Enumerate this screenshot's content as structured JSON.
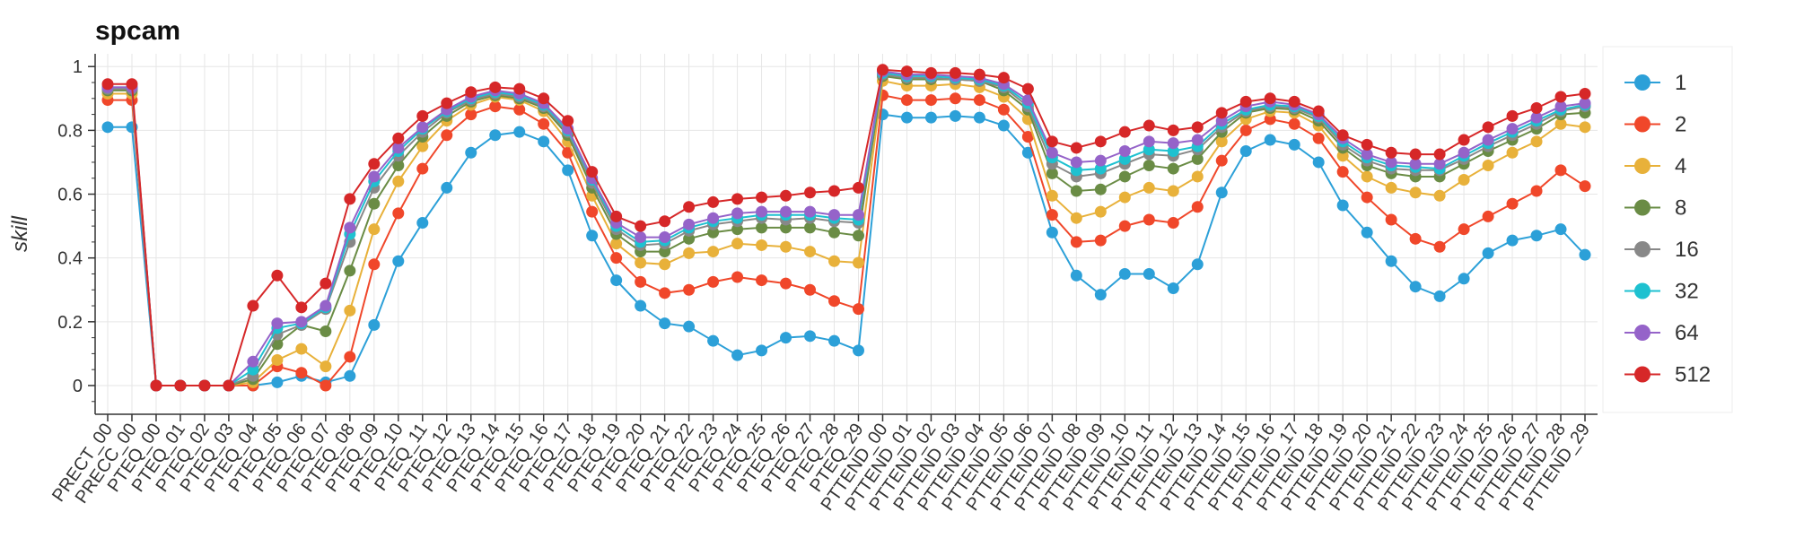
{
  "chart_data": {
    "type": "line",
    "title": "spcam",
    "xlabel": "",
    "ylabel": "skill",
    "ylim": [
      -0.09,
      1.04
    ],
    "yticks": [
      "0",
      "0.2",
      "0.4",
      "0.6",
      "0.8",
      "1"
    ],
    "grid": true,
    "legend_position": "right",
    "categories": [
      "PRECT_00",
      "PRECC_00",
      "PTEQ_00",
      "PTEQ_01",
      "PTEQ_02",
      "PTEQ_03",
      "PTEQ_04",
      "PTEQ_05",
      "PTEQ_06",
      "PTEQ_07",
      "PTEQ_08",
      "PTEQ_09",
      "PTEQ_10",
      "PTEQ_11",
      "PTEQ_12",
      "PTEQ_13",
      "PTEQ_14",
      "PTEQ_15",
      "PTEQ_16",
      "PTEQ_17",
      "PTEQ_18",
      "PTEQ_19",
      "PTEQ_20",
      "PTEQ_21",
      "PTEQ_22",
      "PTEQ_23",
      "PTEQ_24",
      "PTEQ_25",
      "PTEQ_26",
      "PTEQ_27",
      "PTEQ_28",
      "PTEQ_29",
      "PTTEND_00",
      "PTTEND_01",
      "PTTEND_02",
      "PTTEND_03",
      "PTTEND_04",
      "PTTEND_05",
      "PTTEND_06",
      "PTTEND_07",
      "PTTEND_08",
      "PTTEND_09",
      "PTTEND_10",
      "PTTEND_11",
      "PTTEND_12",
      "PTTEND_13",
      "PTTEND_14",
      "PTTEND_15",
      "PTTEND_16",
      "PTTEND_17",
      "PTTEND_18",
      "PTTEND_19",
      "PTTEND_20",
      "PTTEND_21",
      "PTTEND_22",
      "PTTEND_23",
      "PTTEND_24",
      "PTTEND_25",
      "PTTEND_26",
      "PTTEND_27",
      "PTTEND_28",
      "PTTEND_29"
    ],
    "series": [
      {
        "name": "1",
        "color": "#2ca0d8",
        "values": [
          0.81,
          0.81,
          0,
          0,
          0,
          0,
          0,
          0.01,
          0.03,
          0.01,
          0.03,
          0.19,
          0.39,
          0.51,
          0.62,
          0.73,
          0.785,
          0.795,
          0.765,
          0.675,
          0.47,
          0.33,
          0.25,
          0.195,
          0.185,
          0.14,
          0.095,
          0.11,
          0.15,
          0.155,
          0.14,
          0.11,
          0.85,
          0.84,
          0.84,
          0.845,
          0.84,
          0.815,
          0.73,
          0.48,
          0.345,
          0.285,
          0.35,
          0.35,
          0.305,
          0.38,
          0.605,
          0.735,
          0.77,
          0.755,
          0.7,
          0.565,
          0.48,
          0.39,
          0.31,
          0.28,
          0.335,
          0.415,
          0.455,
          0.47,
          0.49,
          0.41
        ]
      },
      {
        "name": "2",
        "color": "#f0472a",
        "values": [
          0.895,
          0.895,
          0,
          0,
          0,
          0,
          0,
          0.06,
          0.04,
          0,
          0.09,
          0.38,
          0.54,
          0.68,
          0.785,
          0.85,
          0.875,
          0.865,
          0.82,
          0.73,
          0.545,
          0.4,
          0.325,
          0.29,
          0.3,
          0.325,
          0.34,
          0.33,
          0.32,
          0.3,
          0.265,
          0.24,
          0.91,
          0.895,
          0.895,
          0.9,
          0.895,
          0.865,
          0.78,
          0.535,
          0.45,
          0.455,
          0.5,
          0.52,
          0.51,
          0.56,
          0.705,
          0.8,
          0.835,
          0.82,
          0.775,
          0.67,
          0.59,
          0.52,
          0.46,
          0.435,
          0.49,
          0.53,
          0.57,
          0.61,
          0.675,
          0.625
        ]
      },
      {
        "name": "4",
        "color": "#e8b13a",
        "values": [
          0.915,
          0.915,
          0,
          0,
          0,
          0,
          0.01,
          0.08,
          0.115,
          0.06,
          0.235,
          0.49,
          0.64,
          0.75,
          0.83,
          0.88,
          0.905,
          0.895,
          0.86,
          0.765,
          0.595,
          0.445,
          0.385,
          0.38,
          0.415,
          0.42,
          0.445,
          0.44,
          0.435,
          0.42,
          0.39,
          0.385,
          0.955,
          0.94,
          0.94,
          0.945,
          0.935,
          0.905,
          0.835,
          0.595,
          0.525,
          0.545,
          0.59,
          0.62,
          0.61,
          0.655,
          0.765,
          0.835,
          0.86,
          0.855,
          0.815,
          0.72,
          0.655,
          0.62,
          0.605,
          0.595,
          0.645,
          0.69,
          0.73,
          0.765,
          0.82,
          0.81
        ]
      },
      {
        "name": "8",
        "color": "#6a8c45",
        "values": [
          0.925,
          0.925,
          0,
          0,
          0,
          0,
          0.02,
          0.13,
          0.19,
          0.17,
          0.36,
          0.57,
          0.69,
          0.78,
          0.845,
          0.89,
          0.91,
          0.9,
          0.87,
          0.785,
          0.62,
          0.475,
          0.42,
          0.42,
          0.46,
          0.48,
          0.49,
          0.495,
          0.495,
          0.495,
          0.48,
          0.47,
          0.97,
          0.96,
          0.96,
          0.96,
          0.955,
          0.925,
          0.865,
          0.665,
          0.61,
          0.615,
          0.655,
          0.69,
          0.68,
          0.71,
          0.795,
          0.855,
          0.87,
          0.865,
          0.83,
          0.745,
          0.69,
          0.665,
          0.655,
          0.655,
          0.695,
          0.735,
          0.77,
          0.805,
          0.85,
          0.855
        ]
      },
      {
        "name": "16",
        "color": "#888888",
        "values": [
          0.93,
          0.93,
          0,
          0,
          0,
          0,
          0.03,
          0.16,
          0.19,
          0.24,
          0.45,
          0.62,
          0.72,
          0.795,
          0.855,
          0.895,
          0.915,
          0.905,
          0.875,
          0.795,
          0.635,
          0.49,
          0.44,
          0.445,
          0.485,
          0.505,
          0.515,
          0.525,
          0.52,
          0.525,
          0.515,
          0.51,
          0.975,
          0.965,
          0.965,
          0.96,
          0.955,
          0.935,
          0.875,
          0.695,
          0.655,
          0.665,
          0.695,
          0.725,
          0.72,
          0.74,
          0.81,
          0.86,
          0.875,
          0.87,
          0.84,
          0.755,
          0.705,
          0.68,
          0.675,
          0.675,
          0.71,
          0.75,
          0.785,
          0.82,
          0.86,
          0.875
        ]
      },
      {
        "name": "32",
        "color": "#1ec1d0",
        "values": [
          0.935,
          0.935,
          0,
          0,
          0,
          0,
          0.05,
          0.18,
          0.195,
          0.245,
          0.475,
          0.64,
          0.735,
          0.805,
          0.86,
          0.9,
          0.92,
          0.91,
          0.88,
          0.8,
          0.645,
          0.5,
          0.45,
          0.455,
          0.495,
          0.515,
          0.525,
          0.535,
          0.535,
          0.535,
          0.525,
          0.52,
          0.98,
          0.97,
          0.97,
          0.965,
          0.96,
          0.94,
          0.885,
          0.715,
          0.675,
          0.68,
          0.71,
          0.74,
          0.735,
          0.75,
          0.82,
          0.865,
          0.88,
          0.875,
          0.845,
          0.765,
          0.715,
          0.69,
          0.685,
          0.68,
          0.72,
          0.76,
          0.795,
          0.83,
          0.865,
          0.88
        ]
      },
      {
        "name": "64",
        "color": "#9563c9",
        "values": [
          0.935,
          0.935,
          0,
          0,
          0,
          0,
          0.075,
          0.195,
          0.2,
          0.25,
          0.495,
          0.655,
          0.745,
          0.81,
          0.865,
          0.905,
          0.925,
          0.915,
          0.885,
          0.805,
          0.65,
          0.51,
          0.465,
          0.465,
          0.505,
          0.525,
          0.54,
          0.545,
          0.545,
          0.545,
          0.535,
          0.535,
          0.985,
          0.975,
          0.975,
          0.97,
          0.965,
          0.945,
          0.895,
          0.73,
          0.7,
          0.705,
          0.735,
          0.765,
          0.76,
          0.77,
          0.83,
          0.875,
          0.89,
          0.88,
          0.85,
          0.775,
          0.725,
          0.7,
          0.695,
          0.695,
          0.73,
          0.77,
          0.805,
          0.84,
          0.875,
          0.885
        ]
      },
      {
        "name": "512",
        "color": "#d62728",
        "values": [
          0.945,
          0.945,
          0,
          0,
          0,
          0,
          0.25,
          0.345,
          0.245,
          0.32,
          0.585,
          0.695,
          0.775,
          0.845,
          0.885,
          0.92,
          0.935,
          0.93,
          0.9,
          0.83,
          0.67,
          0.53,
          0.5,
          0.515,
          0.56,
          0.575,
          0.585,
          0.59,
          0.595,
          0.605,
          0.61,
          0.62,
          0.99,
          0.985,
          0.98,
          0.98,
          0.975,
          0.965,
          0.93,
          0.765,
          0.745,
          0.765,
          0.795,
          0.815,
          0.8,
          0.81,
          0.855,
          0.89,
          0.9,
          0.89,
          0.86,
          0.785,
          0.755,
          0.73,
          0.725,
          0.725,
          0.77,
          0.81,
          0.845,
          0.87,
          0.905,
          0.915
        ]
      }
    ]
  }
}
